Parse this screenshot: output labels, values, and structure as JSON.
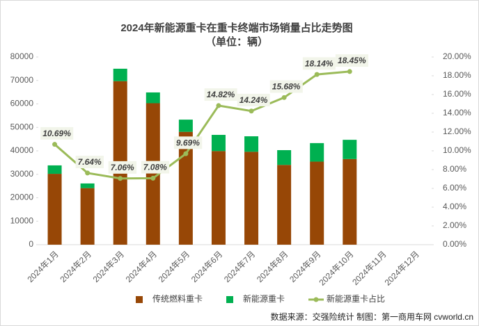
{
  "chart_data": {
    "type": "bar",
    "title": "2024年新能源重卡在重卡终端市场销量占比走势图",
    "subtitle": "（单位：辆）",
    "source": "数据来源：交强险统计 制图：第一商用车网 cvworld.cn",
    "categories": [
      "2024年1月",
      "2024年2月",
      "2024年3月",
      "2024年4月",
      "2024年5月",
      "2024年6月",
      "2024年7月",
      "2024年8月",
      "2024年9月",
      "2024年10月",
      "2024年11月",
      "2024年12月"
    ],
    "stacked": true,
    "series": [
      {
        "name": "传统燃料重卡",
        "type": "bar",
        "color": "#974706",
        "values": [
          30200,
          24100,
          69700,
          60300,
          48100,
          39900,
          39600,
          34000,
          35400,
          36500,
          null,
          null
        ]
      },
      {
        "name": "新能源重卡",
        "type": "bar",
        "color": "#00b050",
        "values": [
          3600,
          2000,
          5300,
          4600,
          5200,
          6900,
          6600,
          6300,
          7900,
          8200,
          null,
          null
        ]
      },
      {
        "name": "新能源重卡占比",
        "type": "line",
        "axis": "y2",
        "color": "#9bbb59",
        "values": [
          10.69,
          7.64,
          7.06,
          7.08,
          9.69,
          14.82,
          14.24,
          15.68,
          18.14,
          18.45,
          null,
          null
        ],
        "value_labels": [
          "10.69%",
          "7.64%",
          "7.06%",
          "7.08%",
          "9.69%",
          "14.82%",
          "14.24%",
          "15.68%",
          "18.14%",
          "18.45%",
          null,
          null
        ]
      }
    ],
    "ylim": [
      0,
      80000
    ],
    "yticks": [
      0,
      10000,
      20000,
      30000,
      40000,
      50000,
      60000,
      70000,
      80000
    ],
    "y2lim": [
      0,
      20
    ],
    "y2ticks": [
      {
        "value": 0,
        "label": "0.00%"
      },
      {
        "value": 2,
        "label": "2.00%"
      },
      {
        "value": 4,
        "label": "4.00%"
      },
      {
        "value": 6,
        "label": "6.00%"
      },
      {
        "value": 8,
        "label": "8.00%"
      },
      {
        "value": 10,
        "label": "10.00%"
      },
      {
        "value": 12,
        "label": "12.00%"
      },
      {
        "value": 14,
        "label": "14.00%"
      },
      {
        "value": 16,
        "label": "16.00%"
      },
      {
        "value": 18,
        "label": "18.00%"
      },
      {
        "value": 20,
        "label": "20.00%"
      }
    ],
    "legend": "bottom"
  }
}
